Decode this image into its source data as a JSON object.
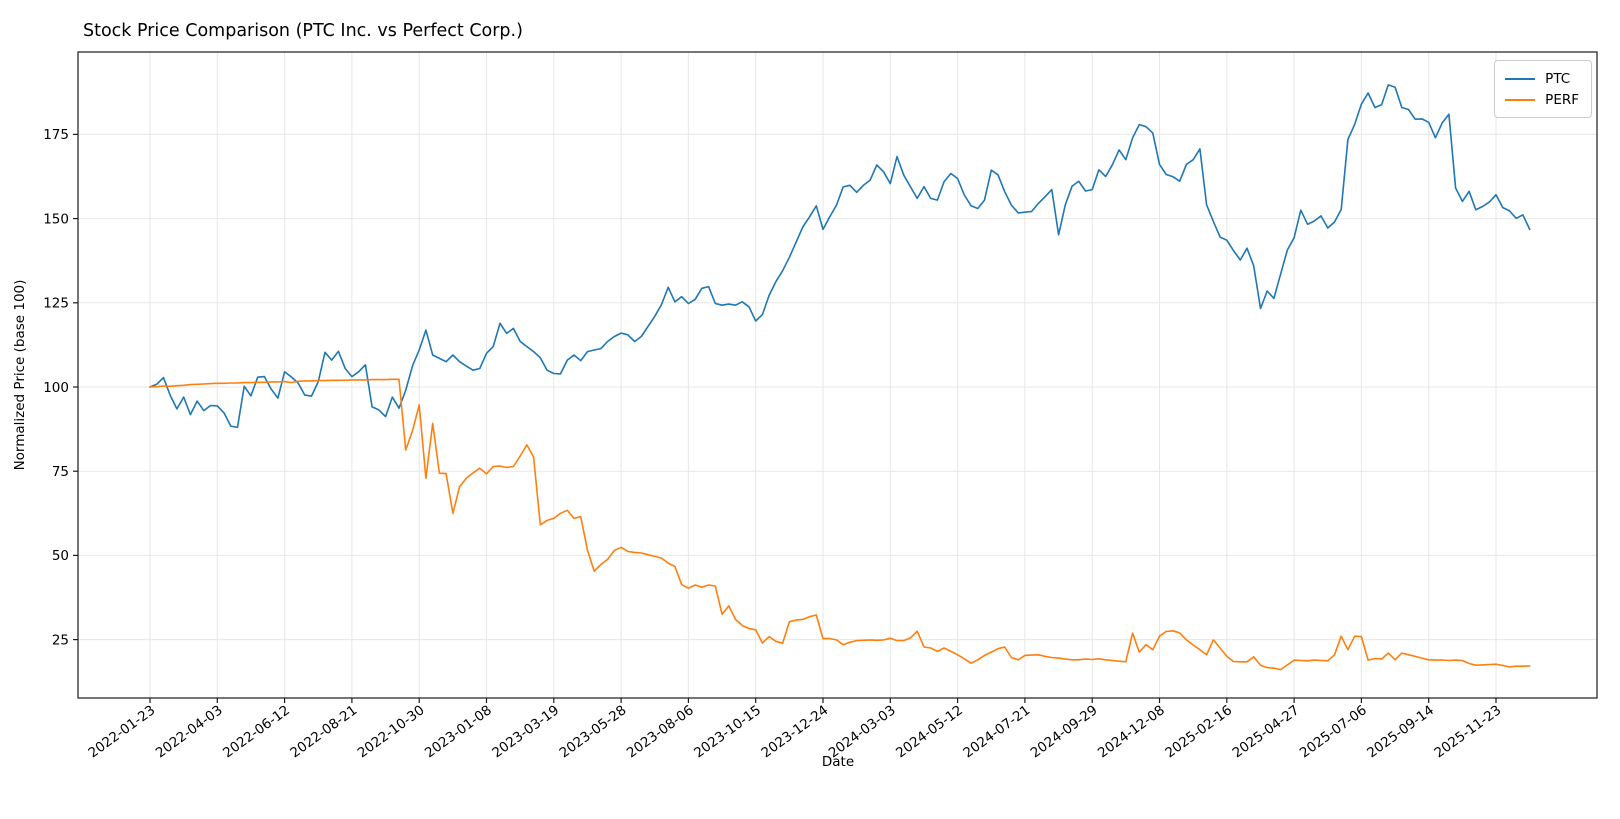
{
  "chart_data": {
    "type": "line",
    "title": "Stock Price Comparison (PTC Inc. vs Perfect Corp.)",
    "xlabel": "Date",
    "ylabel": "Normalized Price (base 100)",
    "legend_position": "upper right",
    "grid": true,
    "background": "#ffffff",
    "y_ticks": [
      25,
      50,
      75,
      100,
      125,
      150,
      175
    ],
    "ylim": [
      7.4,
      199.5
    ],
    "x_start_date": "2022-01-23",
    "x_interval_days": 7,
    "x_tick_every_n_points": 10,
    "x_tick_labels": [
      "2022-01-23",
      "2022-04-03",
      "2022-06-12",
      "2022-08-21",
      "2022-10-30",
      "2023-01-08",
      "2023-03-19",
      "2023-05-28",
      "2023-08-06",
      "2023-10-15",
      "2023-12-24",
      "2024-03-03",
      "2024-05-12",
      "2024-07-21",
      "2024-09-29",
      "2024-12-08",
      "2025-02-16",
      "2025-04-27",
      "2025-07-06",
      "2025-09-14",
      "2025-11-23"
    ],
    "series": [
      {
        "name": "PTC",
        "color": "#1f77b4",
        "values": [
          100.0,
          100.8,
          102.8,
          97.5,
          93.5,
          97.0,
          91.8,
          95.8,
          93.0,
          94.5,
          94.4,
          92.3,
          88.4,
          88.0,
          100.2,
          97.4,
          102.9,
          103.1,
          99.4,
          96.7,
          104.5,
          103.0,
          101.2,
          97.6,
          97.3,
          101.6,
          110.3,
          108.0,
          110.6,
          105.5,
          103.1,
          104.5,
          106.6,
          94.1,
          93.2,
          91.2,
          97.0,
          93.7,
          99.0,
          106.3,
          111.0,
          116.9,
          109.5,
          108.5,
          107.5,
          109.5,
          107.5,
          106.2,
          105.0,
          105.5,
          110.0,
          112.0,
          118.9,
          115.9,
          117.4,
          113.5,
          112.0,
          110.5,
          108.7,
          105.0,
          104.0,
          103.9,
          108.0,
          109.5,
          107.8,
          110.5,
          111.0,
          111.4,
          113.5,
          115.0,
          116.0,
          115.5,
          113.5,
          115.0,
          118.0,
          121.0,
          124.5,
          129.6,
          125.3,
          126.8,
          124.8,
          126.0,
          129.3,
          129.8,
          124.8,
          124.3,
          124.6,
          124.3,
          125.3,
          123.8,
          119.6,
          121.5,
          127.3,
          131.3,
          134.5,
          138.5,
          143.0,
          147.5,
          150.5,
          153.8,
          146.8,
          150.5,
          154.0,
          159.4,
          159.9,
          157.8,
          159.9,
          161.4,
          165.9,
          163.9,
          160.4,
          168.4,
          162.9,
          159.4,
          156.0,
          159.5,
          156.0,
          155.5,
          161.0,
          163.4,
          161.9,
          157.0,
          153.8,
          153.0,
          155.5,
          164.4,
          163.0,
          158.0,
          154.0,
          151.7,
          151.9,
          152.1,
          154.5,
          156.5,
          158.6,
          145.2,
          154.1,
          159.6,
          161.1,
          158.2,
          158.6,
          164.5,
          162.5,
          166.0,
          170.4,
          167.5,
          174.0,
          177.9,
          177.3,
          175.4,
          166.1,
          163.1,
          162.4,
          161.1,
          166.1,
          167.5,
          170.7,
          154.1,
          149.2,
          144.5,
          143.6,
          140.5,
          137.7,
          141.2,
          136.0,
          123.3,
          128.5,
          126.3,
          133.5,
          140.7,
          144.3,
          152.5,
          148.3,
          149.3,
          150.8,
          147.2,
          149.0,
          152.7,
          173.5,
          178.0,
          184.0,
          187.3,
          183.0,
          183.8,
          189.7,
          189.0,
          183.0,
          182.4,
          179.5,
          179.6,
          178.6,
          174.0,
          178.4,
          181.0,
          159.1,
          155.1,
          158.1,
          152.6,
          153.6,
          154.9,
          157.1,
          153.3,
          152.3,
          150.1,
          151.1,
          146.8
        ]
      },
      {
        "name": "PERF",
        "color": "#ff7f0e",
        "values": [
          100.0,
          100.1,
          100.3,
          100.2,
          100.4,
          100.5,
          100.7,
          100.8,
          100.9,
          101.0,
          101.1,
          101.1,
          101.2,
          101.2,
          101.3,
          101.3,
          101.4,
          101.4,
          101.5,
          101.5,
          101.6,
          101.3,
          101.7,
          101.8,
          101.8,
          101.9,
          101.9,
          102.0,
          102.0,
          102.0,
          102.1,
          102.1,
          102.1,
          102.2,
          102.2,
          102.2,
          102.3,
          102.3,
          81.3,
          87.0,
          94.7,
          72.9,
          89.2,
          74.4,
          74.3,
          62.5,
          70.4,
          72.9,
          74.5,
          75.9,
          74.2,
          76.4,
          76.5,
          76.1,
          76.4,
          79.5,
          82.8,
          79.2,
          59.1,
          60.4,
          61.0,
          62.5,
          63.4,
          61.0,
          61.5,
          51.5,
          45.3,
          47.3,
          48.8,
          51.5,
          52.4,
          51.2,
          50.9,
          50.7,
          50.2,
          49.7,
          49.2,
          47.7,
          46.7,
          41.3,
          40.3,
          41.2,
          40.6,
          41.2,
          40.9,
          32.5,
          35.0,
          31.0,
          29.2,
          28.3,
          27.9,
          24.0,
          25.9,
          24.5,
          23.9,
          30.3,
          30.8,
          31.0,
          31.8,
          32.3,
          25.3,
          25.3,
          24.9,
          23.5,
          24.2,
          24.7,
          24.8,
          24.9,
          24.8,
          24.9,
          25.4,
          24.7,
          24.7,
          25.5,
          27.5,
          22.8,
          22.5,
          21.5,
          22.5,
          21.5,
          20.5,
          19.3,
          18.0,
          19.0,
          20.3,
          21.3,
          22.3,
          22.8,
          19.7,
          19.0,
          20.3,
          20.4,
          20.5,
          20.0,
          19.7,
          19.5,
          19.2,
          19.0,
          19.0,
          19.2,
          19.1,
          19.3,
          19.0,
          18.8,
          18.6,
          18.4,
          26.9,
          21.3,
          23.5,
          22.0,
          26.0,
          27.4,
          27.6,
          27.0,
          24.9,
          23.4,
          22.0,
          20.5,
          24.9,
          22.5,
          20.0,
          18.5,
          18.4,
          18.4,
          19.9,
          17.4,
          16.7,
          16.5,
          16.1,
          17.5,
          18.9,
          18.8,
          18.7,
          18.9,
          18.8,
          18.7,
          20.5,
          26.0,
          22.0,
          26.0,
          25.9,
          18.9,
          19.4,
          19.2,
          21.0,
          19.0,
          21.0,
          20.5,
          20.0,
          19.5,
          19.0,
          18.9,
          18.9,
          18.8,
          18.9,
          18.8,
          17.9,
          17.4,
          17.5,
          17.6,
          17.7,
          17.3,
          16.9,
          17.1,
          17.1,
          17.2
        ]
      }
    ],
    "style": {
      "grid_color": "#e7e7e7",
      "spine_color": "#1a1a1a",
      "tick_color": "#1a1a1a",
      "line_width": 1.6
    }
  }
}
